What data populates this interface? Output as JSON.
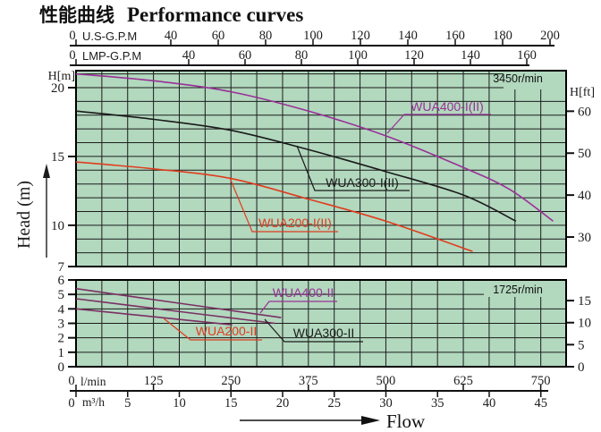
{
  "title": {
    "zh": "性能曲线",
    "en": "Performance curves"
  },
  "labels": {
    "flow": "Flow",
    "head_axis": "Head (m)",
    "left_unit": "H[m]",
    "right_unit": "H[ft]"
  },
  "colors": {
    "plot_bg": "#b2d8be",
    "grid": "#1c1c1c",
    "border": "#000000",
    "purple": "#993097",
    "red": "#e03c1e",
    "black": "#1a1a1a",
    "lower_line": "#7b2f63"
  },
  "axes": {
    "usgpm": {
      "name": "U.S-G.P.M",
      "ticks": [
        0,
        40,
        60,
        80,
        100,
        120,
        140,
        160,
        180,
        200
      ]
    },
    "lmpgpm": {
      "name": "LMP-G.P.M",
      "ticks": [
        0,
        40,
        60,
        80,
        100,
        120,
        140,
        160
      ]
    },
    "lmin": {
      "name": "l/min",
      "ticks": [
        0,
        125,
        250,
        375,
        500,
        625,
        750
      ]
    },
    "m3h": {
      "name": "m³/h",
      "ticks": [
        0,
        5,
        10,
        15,
        20,
        25,
        30,
        35,
        40,
        45
      ]
    },
    "upper_left_m": [
      20,
      15,
      10,
      7
    ],
    "upper_right_ft": [
      60,
      50,
      40,
      30
    ],
    "lower_left_m": [
      6,
      5,
      4,
      3,
      2,
      1,
      0
    ],
    "lower_right_ft": [
      15,
      10,
      5,
      0
    ]
  },
  "chart_data": {
    "type": "line",
    "xlabel": "Flow",
    "ylabel": "Head (m)",
    "x_units": [
      "U.S-G.P.M",
      "LMP-G.P.M",
      "l/min",
      "m³/h"
    ],
    "x_range_lmin": [
      0,
      790
    ],
    "panels": [
      {
        "name": "3450r/min",
        "ylim_m": [
          7,
          21.2
        ],
        "series": [
          {
            "name": "WUA400-I(II)",
            "color": "#993097",
            "label_color": "#993097",
            "points": [
              [
                0,
                21.0
              ],
              [
                125,
                20.5
              ],
              [
                250,
                19.7
              ],
              [
                375,
                18.3
              ],
              [
                500,
                16.5
              ],
              [
                625,
                14.2
              ],
              [
                700,
                12.6
              ],
              [
                770,
                10.3
              ]
            ]
          },
          {
            "name": "WUA300-I(II)",
            "color": "#1a1a1a",
            "label_color": "#1a1a1a",
            "points": [
              [
                0,
                18.3
              ],
              [
                125,
                17.7
              ],
              [
                250,
                16.9
              ],
              [
                375,
                15.5
              ],
              [
                500,
                13.9
              ],
              [
                625,
                12.2
              ],
              [
                710,
                10.3
              ]
            ]
          },
          {
            "name": "WUA200-I(II)",
            "color": "#e03c1e",
            "label_color": "#e03c1e",
            "points": [
              [
                0,
                14.6
              ],
              [
                125,
                14.1
              ],
              [
                250,
                13.4
              ],
              [
                375,
                11.9
              ],
              [
                500,
                10.3
              ],
              [
                640,
                8.1
              ]
            ]
          }
        ]
      },
      {
        "name": "1725r/min",
        "ylim_m": [
          0,
          6
        ],
        "series": [
          {
            "name": "WUA400-II",
            "color": "#7b2f63",
            "label_color": "#993097",
            "points": [
              [
                0,
                5.4
              ],
              [
                165,
                4.4
              ],
              [
                331,
                3.4
              ]
            ]
          },
          {
            "name": "WUA300-II",
            "color": "#7b2f63",
            "label_color": "#1a1a1a",
            "points": [
              [
                0,
                4.7
              ],
              [
                160,
                3.85
              ],
              [
                321,
                3.0
              ]
            ]
          },
          {
            "name": "WUA200-II",
            "color": "#7b2f63",
            "label_color": "#e03c1e",
            "points": [
              [
                0,
                4.0
              ],
              [
                126,
                3.45
              ],
              [
                252,
                2.9
              ]
            ]
          }
        ]
      }
    ]
  }
}
